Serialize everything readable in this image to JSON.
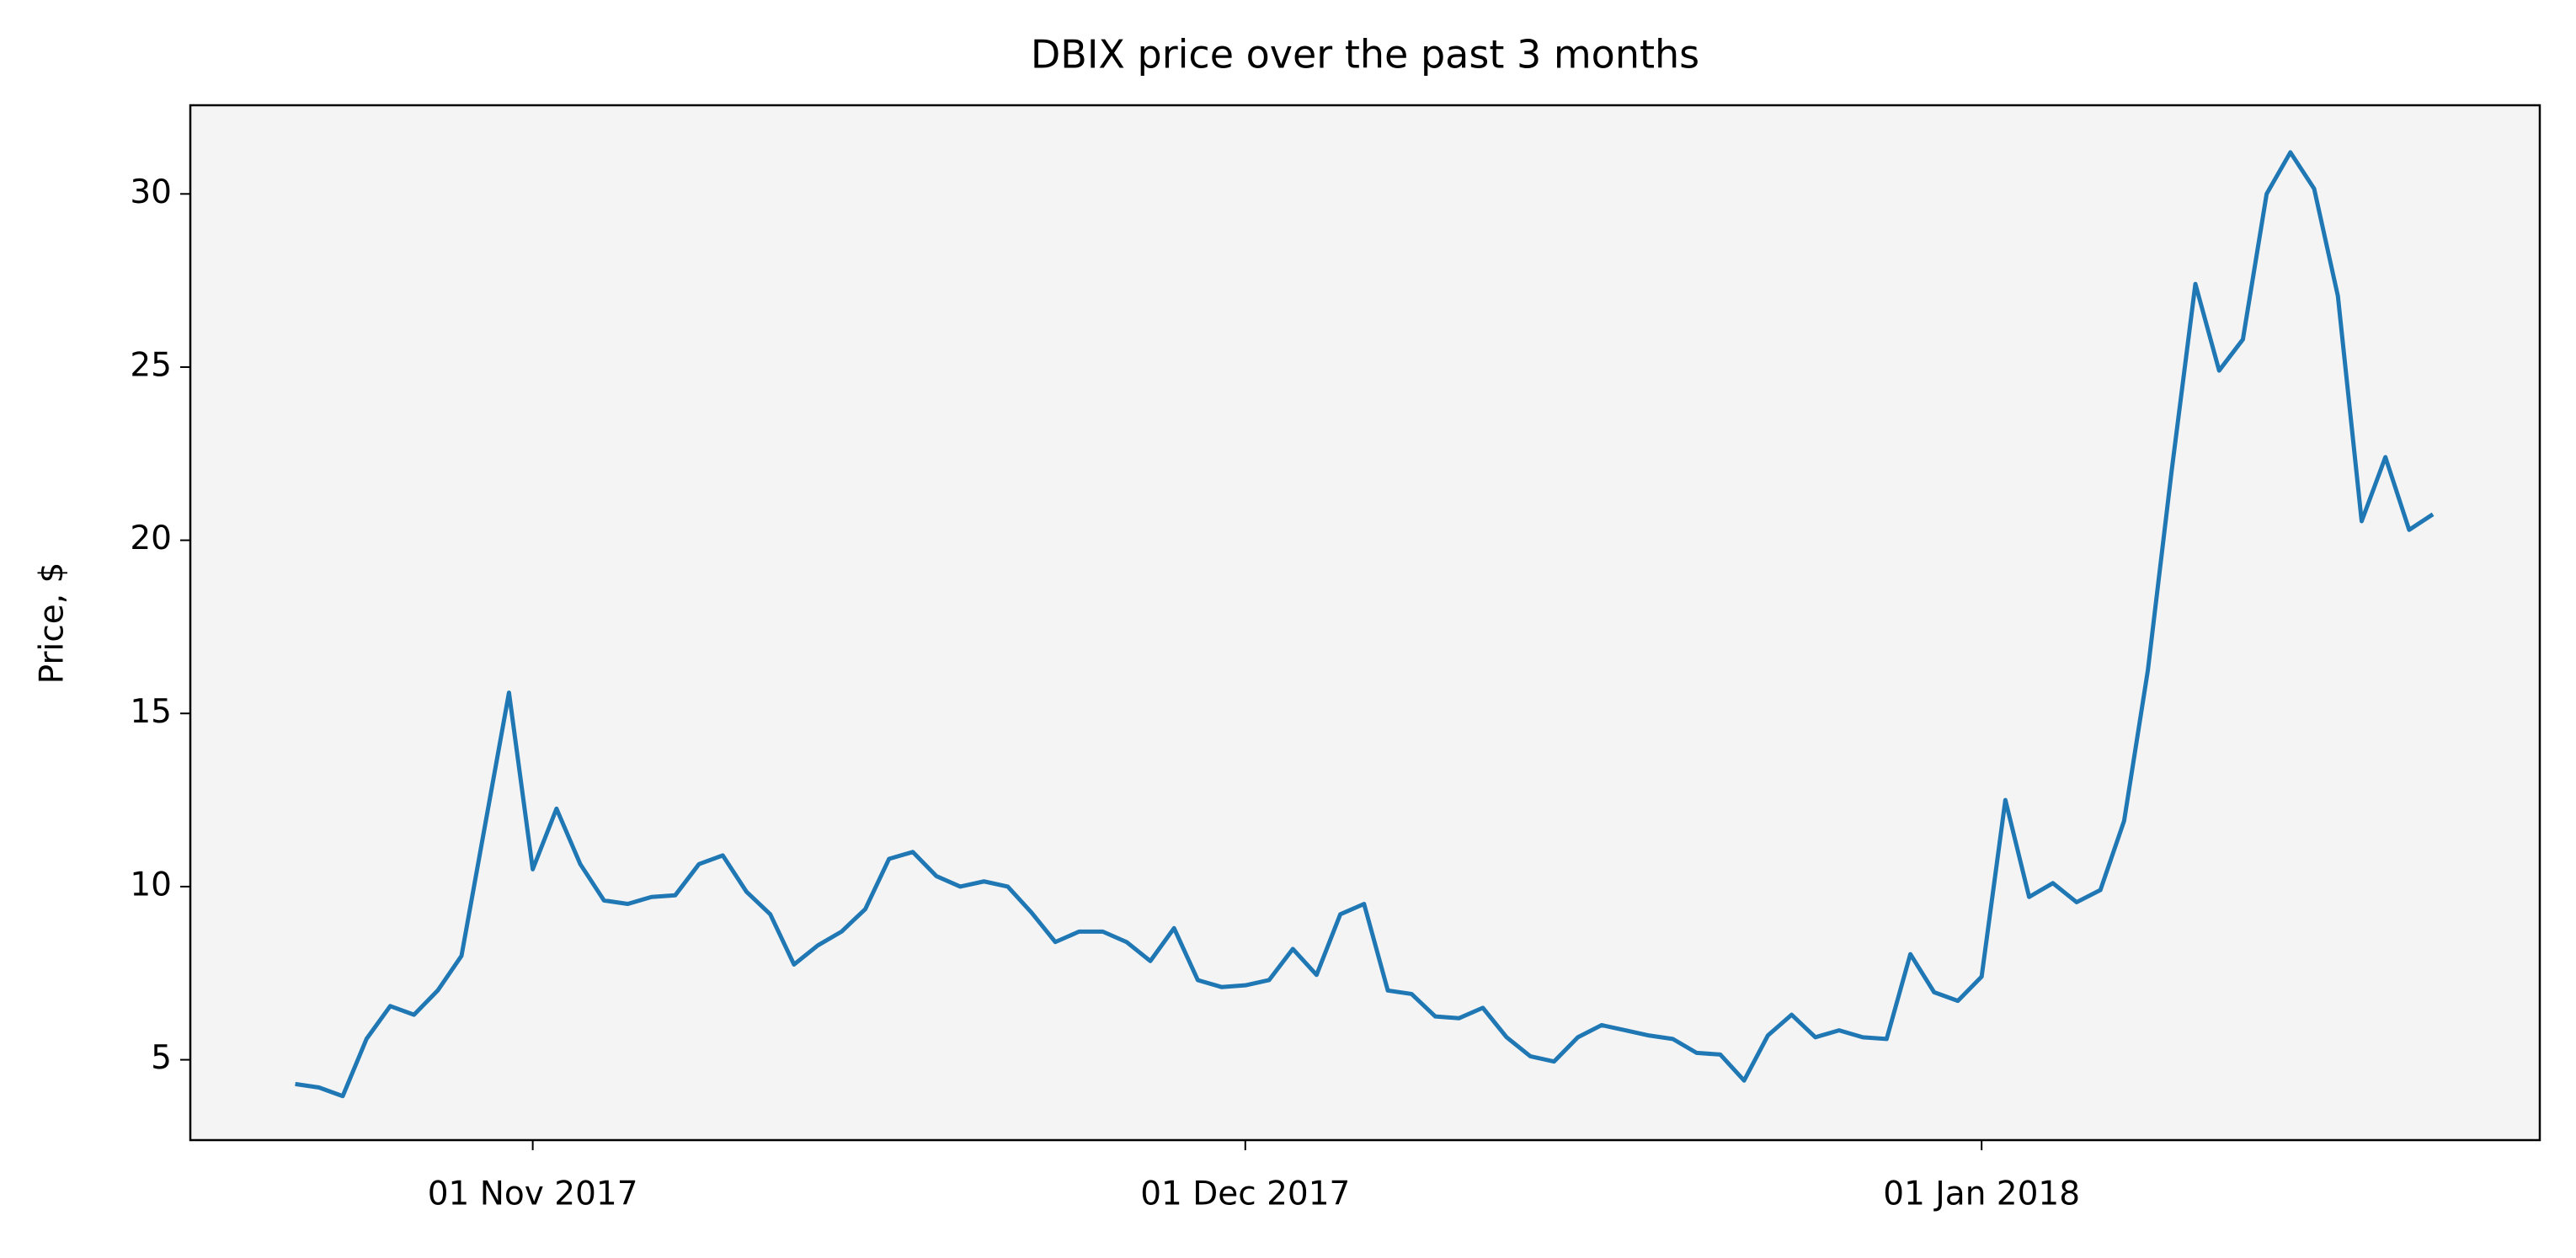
{
  "chart_data": {
    "type": "line",
    "title": "DBIX price over the past 3 months",
    "y_label": "Price, $",
    "x": [
      "2017-10-22",
      "2017-10-23",
      "2017-10-24",
      "2017-10-25",
      "2017-10-26",
      "2017-10-27",
      "2017-10-28",
      "2017-10-29",
      "2017-10-30",
      "2017-10-31",
      "2017-11-01",
      "2017-11-02",
      "2017-11-03",
      "2017-11-04",
      "2017-11-05",
      "2017-11-06",
      "2017-11-07",
      "2017-11-08",
      "2017-11-09",
      "2017-11-10",
      "2017-11-11",
      "2017-11-12",
      "2017-11-13",
      "2017-11-14",
      "2017-11-15",
      "2017-11-16",
      "2017-11-17",
      "2017-11-18",
      "2017-11-19",
      "2017-11-20",
      "2017-11-21",
      "2017-11-22",
      "2017-11-23",
      "2017-11-24",
      "2017-11-25",
      "2017-11-26",
      "2017-11-27",
      "2017-11-28",
      "2017-11-29",
      "2017-11-30",
      "2017-12-01",
      "2017-12-02",
      "2017-12-03",
      "2017-12-04",
      "2017-12-05",
      "2017-12-06",
      "2017-12-07",
      "2017-12-08",
      "2017-12-09",
      "2017-12-10",
      "2017-12-11",
      "2017-12-12",
      "2017-12-13",
      "2017-12-14",
      "2017-12-15",
      "2017-12-16",
      "2017-12-17",
      "2017-12-18",
      "2017-12-19",
      "2017-12-20",
      "2017-12-21",
      "2017-12-22",
      "2017-12-23",
      "2017-12-24",
      "2017-12-25",
      "2017-12-26",
      "2017-12-27",
      "2017-12-28",
      "2017-12-29",
      "2017-12-30",
      "2017-12-31",
      "2018-01-01",
      "2018-01-02",
      "2018-01-03",
      "2018-01-04",
      "2018-01-05",
      "2018-01-06",
      "2018-01-07",
      "2018-01-08",
      "2018-01-09",
      "2018-01-10",
      "2018-01-11",
      "2018-01-12",
      "2018-01-13",
      "2018-01-14",
      "2018-01-15",
      "2018-01-16",
      "2018-01-17",
      "2018-01-18",
      "2018-01-19",
      "2018-01-20"
    ],
    "series": [
      {
        "color": "#1f77b4",
        "values": [
          4.3,
          4.2,
          3.95,
          5.6,
          6.55,
          6.3,
          7.0,
          8.0,
          11.8,
          15.6,
          10.5,
          12.25,
          10.65,
          9.6,
          9.5,
          9.7,
          9.75,
          10.65,
          10.9,
          9.85,
          9.2,
          7.75,
          8.3,
          8.7,
          9.35,
          10.8,
          11.0,
          10.3,
          10.0,
          10.15,
          10.0,
          9.25,
          8.4,
          8.7,
          8.7,
          8.4,
          7.85,
          8.8,
          7.3,
          7.1,
          7.15,
          7.3,
          8.2,
          7.45,
          9.2,
          9.5,
          7.0,
          6.9,
          6.25,
          6.2,
          6.5,
          5.65,
          5.1,
          4.95,
          5.65,
          6.0,
          5.85,
          5.7,
          5.6,
          5.2,
          5.15,
          4.4,
          5.7,
          6.3,
          5.65,
          5.85,
          5.65,
          5.6,
          8.05,
          6.95,
          6.7,
          7.4,
          12.5,
          9.7,
          10.1,
          9.55,
          9.9,
          11.9,
          16.25,
          22.0,
          27.4,
          24.9,
          25.8,
          30.0,
          31.2,
          30.15,
          27.05,
          20.55,
          22.4,
          20.3,
          20.75
        ]
      }
    ],
    "xlim": [
      "2017-10-17T14:00",
      "2018-01-24T12:00"
    ],
    "xticks": [
      {
        "value": "2017-11-01",
        "label": "01 Nov 2017"
      },
      {
        "value": "2017-12-01",
        "label": "01 Dec 2017"
      },
      {
        "value": "2018-01-01",
        "label": "01 Jan 2018"
      }
    ],
    "ylim": [
      2.68,
      32.56
    ],
    "yticks": [
      5,
      10,
      15,
      20,
      25,
      30
    ],
    "grid": false,
    "background": "#f4f4f4"
  }
}
